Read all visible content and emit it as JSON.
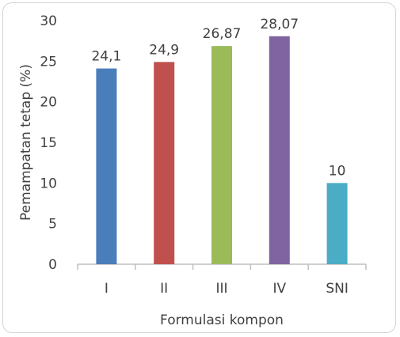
{
  "chart_data": {
    "type": "bar",
    "categories": [
      "I",
      "II",
      "III",
      "IV",
      "SNI"
    ],
    "values": [
      24.1,
      24.9,
      26.87,
      28.07,
      10
    ],
    "data_labels": [
      "24,1",
      "24,9",
      "26,87",
      "28,07",
      "10"
    ],
    "colors": [
      "#4a7ebb",
      "#c0504d",
      "#9bbb59",
      "#8064a2",
      "#4bacc6"
    ],
    "xlabel": "Formulasi kompon",
    "ylabel": "Pemampatan tetap (%)",
    "ylim": [
      0,
      30
    ],
    "yticks": [
      0,
      5,
      10,
      15,
      20,
      25,
      30
    ],
    "grid": false,
    "legend": "none"
  }
}
